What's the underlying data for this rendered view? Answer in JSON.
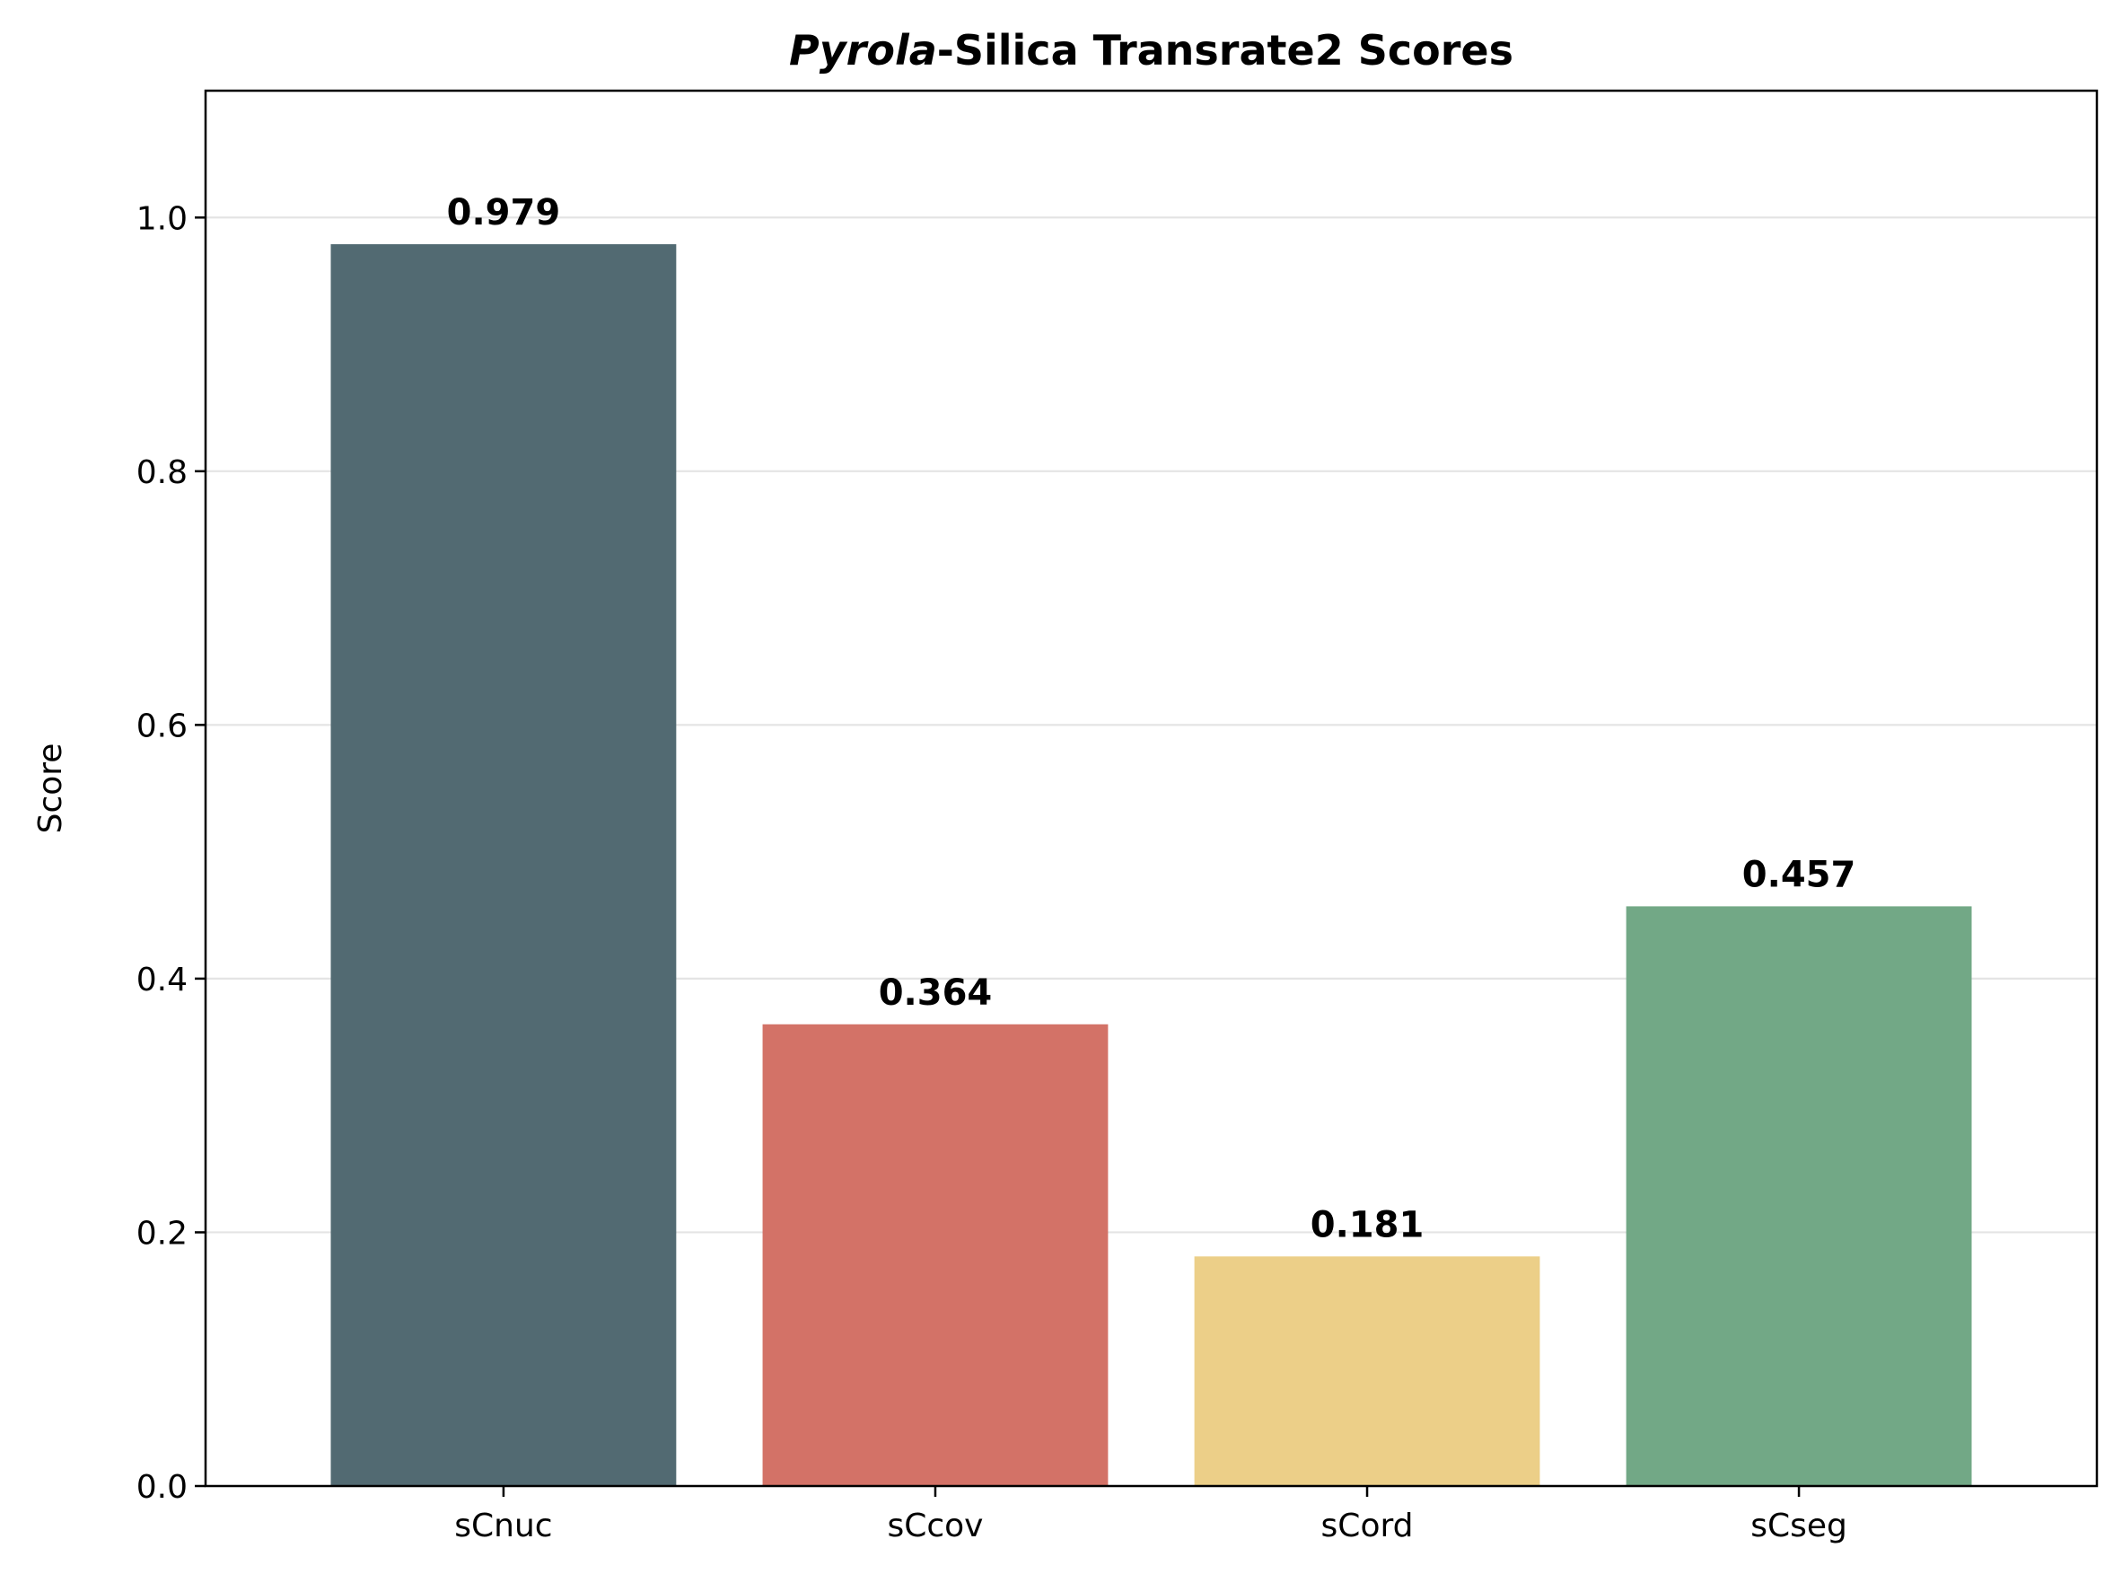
{
  "chart_data": {
    "type": "bar",
    "title_italic": "Pyrola",
    "title_rest": "-Silica Transrate2 Scores",
    "xlabel": "",
    "ylabel": "Score",
    "categories": [
      "sCnuc",
      "sCcov",
      "sCord",
      "sCseg"
    ],
    "values": [
      0.979,
      0.364,
      0.181,
      0.457
    ],
    "value_labels": [
      "0.979",
      "0.364",
      "0.181",
      "0.457"
    ],
    "colors": [
      "#526a72",
      "#d37267",
      "#eccf88",
      "#72a886"
    ],
    "ylim": [
      0,
      1.1
    ],
    "yticks": [
      0.0,
      0.2,
      0.4,
      0.6,
      0.8,
      1.0
    ],
    "ytick_labels": [
      "0.0",
      "0.2",
      "0.4",
      "0.6",
      "0.8",
      "1.0"
    ],
    "grid": "horizontal",
    "legend": "none"
  }
}
